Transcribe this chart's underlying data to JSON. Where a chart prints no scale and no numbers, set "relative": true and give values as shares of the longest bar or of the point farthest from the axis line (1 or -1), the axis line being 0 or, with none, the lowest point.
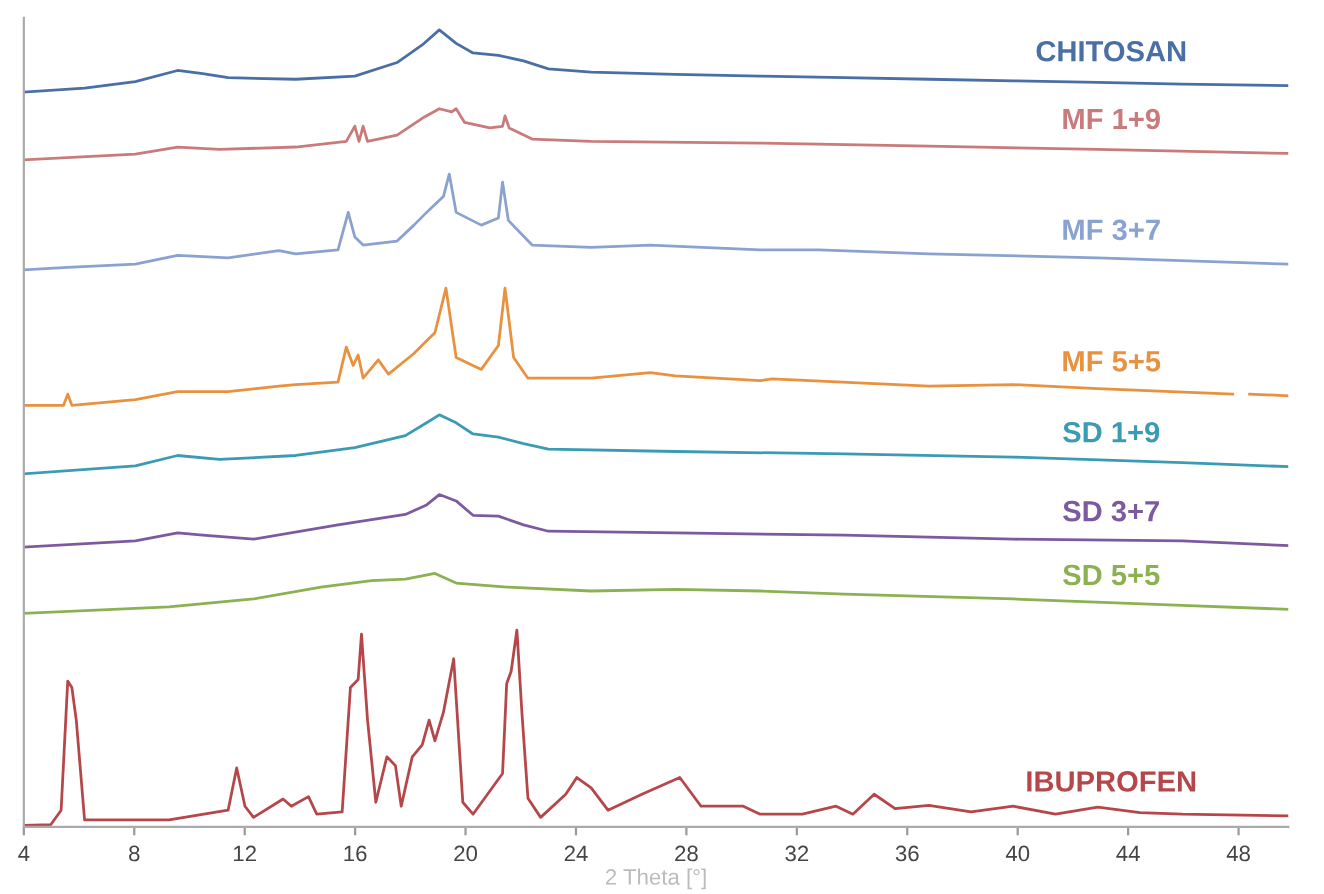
{
  "chart_data": {
    "type": "line",
    "relative": true,
    "xlabel": "2 Theta [°]",
    "xlim": [
      4,
      49.8
    ],
    "xticks": [
      4,
      8,
      12,
      16,
      20,
      24,
      28,
      32,
      36,
      40,
      44,
      48
    ],
    "grid": false,
    "legend": false,
    "marker": "none",
    "line_style": "solid",
    "series": [
      {
        "name": "CHITOSAN",
        "color": "#4a6fa5",
        "x": [
          4.0,
          6.2,
          8.04,
          9.57,
          10.48,
          11.4,
          13.85,
          15.99,
          17.52,
          18.43,
          19.05,
          19.66,
          20.27,
          21.19,
          22.1,
          23.0,
          24.55,
          27.6,
          30.67,
          33.72,
          36.8,
          39.84,
          42.9,
          45.96,
          49.78
        ],
        "values": [
          0.922,
          0.927,
          0.935,
          0.949,
          0.945,
          0.94,
          0.938,
          0.942,
          0.959,
          0.981,
          1.0,
          0.983,
          0.971,
          0.968,
          0.961,
          0.951,
          0.947,
          0.944,
          0.942,
          0.94,
          0.938,
          0.936,
          0.934,
          0.932,
          0.93
        ]
      },
      {
        "name": "MF 1+9",
        "color": "#c97b7b",
        "x": [
          4.0,
          8.04,
          9.57,
          11.09,
          13.85,
          15.68,
          15.99,
          16.14,
          16.29,
          16.45,
          17.52,
          18.43,
          19.05,
          19.5,
          19.66,
          19.96,
          20.88,
          21.34,
          21.43,
          21.58,
          22.41,
          24.55,
          30.67,
          36.78,
          42.9,
          49.78
        ],
        "values": [
          0.837,
          0.844,
          0.853,
          0.85,
          0.853,
          0.86,
          0.879,
          0.86,
          0.879,
          0.86,
          0.868,
          0.889,
          0.901,
          0.897,
          0.901,
          0.884,
          0.877,
          0.879,
          0.892,
          0.877,
          0.863,
          0.86,
          0.858,
          0.854,
          0.85,
          0.845
        ]
      },
      {
        "name": "MF 3+7",
        "color": "#8aa2cf",
        "x": [
          4.0,
          5.59,
          8.04,
          9.57,
          11.4,
          13.24,
          13.85,
          15.38,
          15.75,
          15.99,
          16.29,
          17.52,
          18.13,
          18.59,
          18.89,
          19.2,
          19.41,
          19.66,
          20.57,
          21.19,
          21.34,
          21.55,
          22.41,
          24.55,
          26.69,
          30.67,
          32.8,
          36.78,
          42.9,
          49.78
        ],
        "values": [
          0.699,
          0.702,
          0.706,
          0.717,
          0.714,
          0.723,
          0.719,
          0.724,
          0.771,
          0.74,
          0.73,
          0.735,
          0.755,
          0.771,
          0.781,
          0.791,
          0.819,
          0.771,
          0.755,
          0.764,
          0.809,
          0.761,
          0.73,
          0.727,
          0.73,
          0.724,
          0.724,
          0.719,
          0.714,
          0.706
        ]
      },
      {
        "name": "MF 5+5",
        "color": "#e8913f",
        "x": [
          4.0,
          5.44,
          5.59,
          5.74,
          8.04,
          9.57,
          11.4,
          13.24,
          13.85,
          15.38,
          15.68,
          15.93,
          16.11,
          16.29,
          16.84,
          17.21,
          18.13,
          18.59,
          18.89,
          19.29,
          19.66,
          20.57,
          21.19,
          21.43,
          21.74,
          22.26,
          24.55,
          26.69,
          27.6,
          30.67,
          31.1,
          36.78,
          39.84,
          42.9,
          47.79,
          48.1,
          48.4,
          49.78
        ],
        "values": [
          0.529,
          0.529,
          0.543,
          0.529,
          0.536,
          0.546,
          0.546,
          0.553,
          0.555,
          0.558,
          0.602,
          0.579,
          0.592,
          0.563,
          0.586,
          0.568,
          0.594,
          0.61,
          0.62,
          0.676,
          0.589,
          0.574,
          0.604,
          0.676,
          0.589,
          0.563,
          0.563,
          0.57,
          0.566,
          0.56,
          0.562,
          0.553,
          0.555,
          0.55,
          0.543,
          null,
          0.543,
          0.541
        ]
      },
      {
        "name": "SD 1+9",
        "color": "#3b9bb5",
        "x": [
          4.0,
          8.04,
          9.57,
          11.09,
          13.85,
          15.99,
          17.82,
          18.59,
          19.05,
          19.66,
          20.27,
          21.19,
          22.1,
          23.0,
          27.6,
          33.72,
          39.84,
          45.96,
          49.78
        ],
        "values": [
          0.443,
          0.453,
          0.466,
          0.461,
          0.466,
          0.476,
          0.491,
          0.507,
          0.517,
          0.507,
          0.493,
          0.489,
          0.481,
          0.474,
          0.471,
          0.468,
          0.464,
          0.457,
          0.452
        ]
      },
      {
        "name": "SD 3+7",
        "color": "#7d5aa0",
        "x": [
          4.0,
          8.04,
          9.57,
          10.48,
          12.32,
          15.38,
          17.82,
          18.59,
          19.05,
          19.66,
          20.27,
          21.19,
          22.1,
          23.0,
          27.6,
          33.72,
          39.84,
          45.96,
          49.78
        ],
        "values": [
          0.351,
          0.359,
          0.369,
          0.366,
          0.361,
          0.379,
          0.392,
          0.404,
          0.417,
          0.409,
          0.391,
          0.39,
          0.379,
          0.371,
          0.369,
          0.366,
          0.361,
          0.359,
          0.353
        ]
      },
      {
        "name": "SD 5+5",
        "color": "#8bb153",
        "x": [
          4.0,
          9.26,
          12.32,
          14.76,
          16.6,
          17.82,
          18.89,
          19.66,
          21.49,
          24.55,
          27.6,
          30.67,
          33.72,
          39.84,
          45.96,
          49.78
        ],
        "values": [
          0.268,
          0.276,
          0.286,
          0.301,
          0.309,
          0.311,
          0.318,
          0.306,
          0.301,
          0.296,
          0.298,
          0.296,
          0.292,
          0.286,
          0.278,
          0.273
        ]
      },
      {
        "name": "IBUPROFEN",
        "color": "#b5474a",
        "x": [
          4.0,
          4.98,
          5.35,
          5.59,
          5.74,
          5.9,
          6.2,
          9.26,
          11.4,
          11.71,
          12.01,
          12.32,
          13.39,
          13.69,
          14.31,
          14.61,
          15.53,
          15.83,
          16.11,
          16.23,
          16.45,
          16.75,
          17.15,
          17.46,
          17.67,
          18.07,
          18.43,
          18.68,
          18.89,
          19.2,
          19.57,
          19.9,
          20.27,
          21.34,
          21.49,
          21.65,
          21.86,
          22.04,
          22.26,
          22.72,
          23.63,
          24.03,
          24.55,
          25.16,
          26.39,
          27.76,
          28.53,
          30.06,
          30.67,
          32.2,
          33.42,
          34.03,
          34.8,
          35.56,
          36.78,
          38.31,
          39.84,
          41.37,
          42.9,
          44.43,
          45.96,
          49.78
        ],
        "values": [
          0.002,
          0.003,
          0.021,
          0.183,
          0.175,
          0.134,
          0.009,
          0.009,
          0.021,
          0.074,
          0.026,
          0.012,
          0.035,
          0.026,
          0.038,
          0.016,
          0.019,
          0.175,
          0.185,
          0.242,
          0.134,
          0.031,
          0.088,
          0.077,
          0.026,
          0.088,
          0.103,
          0.134,
          0.108,
          0.144,
          0.211,
          0.031,
          0.016,
          0.067,
          0.18,
          0.195,
          0.247,
          0.144,
          0.036,
          0.012,
          0.041,
          0.062,
          0.049,
          0.021,
          0.041,
          0.062,
          0.026,
          0.026,
          0.016,
          0.016,
          0.026,
          0.016,
          0.041,
          0.023,
          0.027,
          0.019,
          0.026,
          0.016,
          0.025,
          0.018,
          0.016,
          0.014
        ]
      }
    ]
  }
}
